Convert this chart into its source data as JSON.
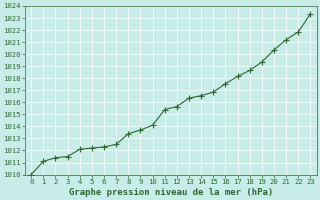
{
  "x": [
    0,
    1,
    2,
    3,
    4,
    5,
    6,
    7,
    8,
    9,
    10,
    11,
    12,
    13,
    14,
    15,
    16,
    17,
    18,
    19,
    20,
    21,
    22,
    23
  ],
  "y": [
    1010.0,
    1011.1,
    1011.4,
    1011.5,
    1012.1,
    1012.2,
    1012.3,
    1012.5,
    1013.4,
    1013.7,
    1014.1,
    1015.4,
    1015.65,
    1016.35,
    1016.55,
    1016.85,
    1017.55,
    1018.15,
    1018.65,
    1019.35,
    1020.35,
    1021.2,
    1021.85,
    1023.35
  ],
  "ylim": [
    1010,
    1024
  ],
  "xlim": [
    -0.5,
    23.5
  ],
  "yticks": [
    1010,
    1011,
    1012,
    1013,
    1014,
    1015,
    1016,
    1017,
    1018,
    1019,
    1020,
    1021,
    1022,
    1023,
    1024
  ],
  "xticks": [
    0,
    1,
    2,
    3,
    4,
    5,
    6,
    7,
    8,
    9,
    10,
    11,
    12,
    13,
    14,
    15,
    16,
    17,
    18,
    19,
    20,
    21,
    22,
    23
  ],
  "line_color": "#2d6a2d",
  "marker": "+",
  "marker_size": 4,
  "linewidth": 0.8,
  "bg_color": "#c8ece8",
  "grid_color": "#aacccc",
  "grid_color2": "#ffffff",
  "xlabel": "Graphe pression niveau de la mer (hPa)",
  "xlabel_fontsize": 6.5,
  "tick_fontsize": 5.2
}
